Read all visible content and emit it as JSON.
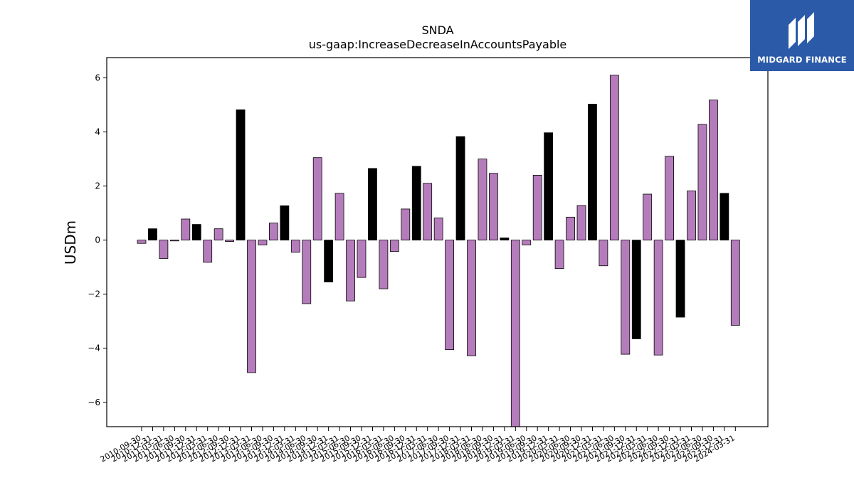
{
  "brand": {
    "name": "MIDGARD FINANCE",
    "logo_icon": "midgard-m-logo-icon",
    "bg_color": "#2b5aa8"
  },
  "chart_data": {
    "type": "bar",
    "title": "SNDA",
    "subtitle": "us-gaap:IncreaseDecreaseInAccountsPayable",
    "xlabel": "",
    "ylabel": "USDm",
    "ylim": [
      -6.9,
      6.75
    ],
    "yticks": [
      -6,
      -4,
      -2,
      0,
      2,
      4,
      6
    ],
    "ytick_labels": [
      "−6",
      "−4",
      "−2",
      "0",
      "2",
      "4",
      "6"
    ],
    "grid": false,
    "colors": {
      "quarter": "#b57cbc",
      "fiscal_year_end": "#000000"
    },
    "categories": [
      "2010-09-30",
      "2010-12-31",
      "2011-03-31",
      "2011-06-30",
      "2011-09-30",
      "2011-12-31",
      "2012-03-31",
      "2012-06-30",
      "2012-09-30",
      "2012-12-31",
      "2013-03-31",
      "2013-06-30",
      "2013-09-30",
      "2013-12-31",
      "2014-03-31",
      "2014-06-30",
      "2014-09-30",
      "2014-12-31",
      "2015-03-31",
      "2015-06-30",
      "2015-09-30",
      "2015-12-31",
      "2016-03-31",
      "2016-06-30",
      "2016-09-30",
      "2016-12-31",
      "2017-03-31",
      "2017-06-30",
      "2017-09-30",
      "2017-12-31",
      "2018-03-31",
      "2018-06-30",
      "2018-09-30",
      "2018-12-31",
      "2019-03-31",
      "2019-06-30",
      "2019-09-30",
      "2019-12-31",
      "2020-03-31",
      "2020-06-30",
      "2020-09-30",
      "2020-12-31",
      "2021-03-31",
      "2021-06-30",
      "2021-09-30",
      "2021-12-31",
      "2022-03-31",
      "2022-06-30",
      "2022-09-30",
      "2022-12-31",
      "2023-03-31",
      "2023-06-30",
      "2023-09-30",
      "2023-12-31",
      "2024-03-31"
    ],
    "values": [
      -0.12,
      0.42,
      -0.68,
      -0.03,
      0.78,
      0.58,
      -0.82,
      0.42,
      -0.05,
      4.82,
      -4.9,
      -0.18,
      0.63,
      1.27,
      -0.45,
      -2.35,
      3.05,
      -1.55,
      1.73,
      -2.25,
      -1.38,
      2.65,
      -1.8,
      -0.42,
      1.15,
      2.73,
      2.1,
      0.82,
      -4.05,
      3.83,
      -4.28,
      3.0,
      2.47,
      0.08,
      -6.9,
      -0.18,
      2.4,
      3.97,
      -1.05,
      0.85,
      1.28,
      5.03,
      -0.95,
      6.1,
      -4.22,
      -3.65,
      1.7,
      -4.25,
      3.1,
      -2.85,
      1.82,
      4.28,
      5.18,
      1.73,
      -3.15
    ],
    "fiscal_year_end_flags": [
      0,
      1,
      0,
      0,
      0,
      1,
      0,
      0,
      0,
      1,
      0,
      0,
      0,
      1,
      0,
      0,
      0,
      1,
      0,
      0,
      0,
      1,
      0,
      0,
      0,
      1,
      0,
      0,
      0,
      1,
      0,
      0,
      0,
      1,
      0,
      0,
      0,
      1,
      0,
      0,
      0,
      1,
      0,
      0,
      0,
      1,
      0,
      0,
      0,
      1,
      0,
      0,
      0,
      1,
      0
    ]
  }
}
